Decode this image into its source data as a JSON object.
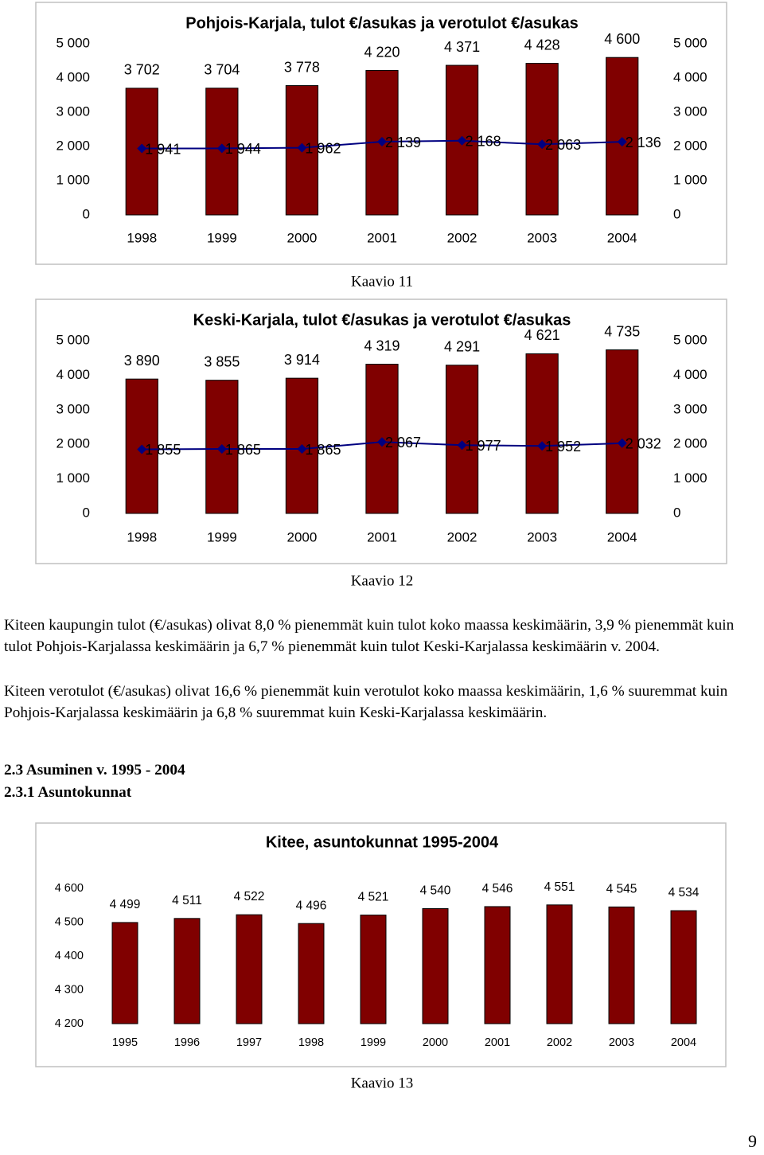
{
  "chart_data": [
    {
      "type": "combo",
      "title": "Pohjois-Karjala, tulot €/asukas ja verotulot €/asukas",
      "caption": "Kaavio 11",
      "categories": [
        "1998",
        "1999",
        "2000",
        "2001",
        "2002",
        "2003",
        "2004"
      ],
      "series": [
        {
          "type": "bar",
          "color": "#800000",
          "values": [
            3702,
            3704,
            3778,
            4220,
            4371,
            4428,
            4600
          ],
          "value_labels": [
            "3 702",
            "3 704",
            "3 778",
            "4 220",
            "4 371",
            "4 428",
            "4 600"
          ]
        },
        {
          "type": "line",
          "color": "#000080",
          "axis": "y2",
          "values": [
            1941,
            1944,
            1962,
            2139,
            2168,
            2063,
            2136
          ],
          "value_labels": [
            "1 941",
            "1 944",
            "1 962",
            "2 139",
            "2 168",
            "2 063",
            "2 136"
          ]
        }
      ],
      "ylim": [
        0,
        5000
      ],
      "yticks": [
        0,
        {
          "value": 1000,
          "label": "1 000"
        },
        {
          "value": 2000,
          "label": "2 000"
        },
        {
          "value": 3000,
          "label": "3 000"
        },
        {
          "value": 4000,
          "label": "4 000"
        },
        {
          "value": 5000,
          "label": "5 000"
        }
      ],
      "y2lim": [
        0,
        5000
      ],
      "y2ticks": [
        0,
        {
          "value": 1000,
          "label": "1 000"
        },
        {
          "value": 2000,
          "label": "2 000"
        },
        {
          "value": 3000,
          "label": "3 000"
        },
        {
          "value": 4000,
          "label": "4 000"
        },
        {
          "value": 5000,
          "label": "5 000"
        }
      ]
    },
    {
      "type": "combo",
      "title": "Keski-Karjala, tulot €/asukas ja verotulot €/asukas",
      "caption": "Kaavio 12",
      "categories": [
        "1998",
        "1999",
        "2000",
        "2001",
        "2002",
        "2003",
        "2004"
      ],
      "series": [
        {
          "type": "bar",
          "color": "#800000",
          "values": [
            3890,
            3855,
            3914,
            4319,
            4291,
            4621,
            4735
          ],
          "value_labels": [
            "3 890",
            "3 855",
            "3 914",
            "4 319",
            "4 291",
            "4 621",
            "4 735"
          ]
        },
        {
          "type": "line",
          "color": "#000080",
          "axis": "y2",
          "values": [
            1855,
            1865,
            1865,
            2067,
            1977,
            1952,
            2032
          ],
          "value_labels": [
            "1 855",
            "1 865",
            "1 865",
            "2 067",
            "1 977",
            "1 952",
            "2 032"
          ]
        }
      ],
      "ylim": [
        0,
        5000
      ],
      "yticks": [
        0,
        {
          "value": 1000,
          "label": "1 000"
        },
        {
          "value": 2000,
          "label": "2 000"
        },
        {
          "value": 3000,
          "label": "3 000"
        },
        {
          "value": 4000,
          "label": "4 000"
        },
        {
          "value": 5000,
          "label": "5 000"
        }
      ],
      "y2lim": [
        0,
        5000
      ],
      "y2ticks": [
        0,
        {
          "value": 1000,
          "label": "1 000"
        },
        {
          "value": 2000,
          "label": "2 000"
        },
        {
          "value": 3000,
          "label": "3 000"
        },
        {
          "value": 4000,
          "label": "4 000"
        },
        {
          "value": 5000,
          "label": "5 000"
        }
      ]
    },
    {
      "type": "bar",
      "title": "Kitee, asuntokunnat 1995-2004",
      "caption": "Kaavio 13",
      "categories": [
        "1995",
        "1996",
        "1997",
        "1998",
        "1999",
        "2000",
        "2001",
        "2002",
        "2003",
        "2004"
      ],
      "series": [
        {
          "type": "bar",
          "color": "#800000",
          "values": [
            4499,
            4511,
            4522,
            4496,
            4521,
            4540,
            4546,
            4551,
            4545,
            4534
          ],
          "value_labels": [
            "4 499",
            "4 511",
            "4 522",
            "4 496",
            "4 521",
            "4 540",
            "4 546",
            "4 551",
            "4 545",
            "4 534"
          ]
        }
      ],
      "ylim": [
        4200,
        4600
      ],
      "yticks": [
        {
          "value": 4200,
          "label": "4 200"
        },
        {
          "value": 4300,
          "label": "4 300"
        },
        {
          "value": 4400,
          "label": "4 400"
        },
        {
          "value": 4500,
          "label": "4 500"
        },
        {
          "value": 4600,
          "label": "4 600"
        }
      ]
    }
  ],
  "document": {
    "paragraphs": [
      "Kiteen kaupungin tulot (€/asukas) olivat 8,0 % pienemmät kuin tulot koko maassa keskimäärin, 3,9 % pienemmät kuin tulot Pohjois-Karjalassa keskimäärin ja 6,7 % pienemmät kuin tulot Keski-Karjalassa keskimäärin v. 2004.",
      "Kiteen verotulot (€/asukas) olivat 16,6 % pienemmät kuin verotulot koko maassa keskimäärin, 1,6 % suuremmat kuin Pohjois-Karjalassa keskimäärin ja 6,8 % suuremmat kuin Keski-Karjalassa keskimäärin."
    ],
    "headings": [
      "2.3 Asuminen v. 1995 - 2004",
      "2.3.1 Asuntokunnat"
    ],
    "page_number": "9"
  }
}
